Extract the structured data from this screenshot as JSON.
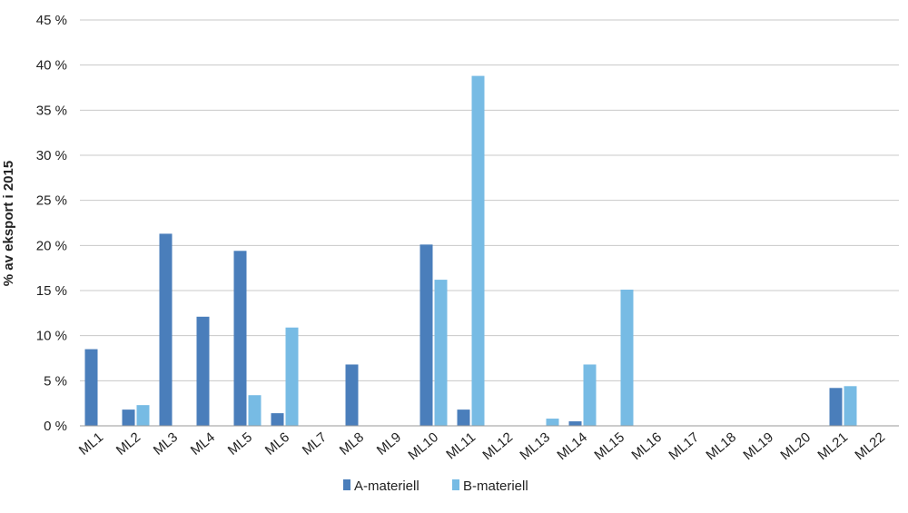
{
  "chart_data": {
    "type": "bar",
    "title": "",
    "xlabel": "",
    "ylabel": "% av eksport  i 2015",
    "ylim": [
      0,
      45
    ],
    "yticks": [
      0,
      5,
      10,
      15,
      20,
      25,
      30,
      35,
      40,
      45
    ],
    "ytick_suffix": " %",
    "grid": true,
    "legend_position": "bottom-center",
    "categories": [
      "ML1",
      "ML2",
      "ML3",
      "ML4",
      "ML5",
      "ML6",
      "ML7",
      "ML8",
      "ML9",
      "ML10",
      "ML11",
      "ML12",
      "ML13",
      "ML14",
      "ML15",
      "ML16",
      "ML17",
      "ML18",
      "ML19",
      "ML20",
      "ML21",
      "ML22"
    ],
    "series": [
      {
        "name": "A-materiell",
        "color": "#4a7ebb",
        "values": [
          8.5,
          1.8,
          21.3,
          12.1,
          19.4,
          1.4,
          0,
          6.8,
          0,
          20.1,
          1.8,
          0,
          0,
          0.5,
          0,
          0,
          0,
          0,
          0,
          0,
          4.2,
          0
        ]
      },
      {
        "name": "B-materiell",
        "color": "#77bbe4",
        "values": [
          0,
          2.3,
          0,
          0,
          3.4,
          10.9,
          0,
          0,
          0,
          16.2,
          38.8,
          0,
          0.8,
          6.8,
          15.1,
          0,
          0,
          0,
          0,
          0,
          4.4,
          0
        ]
      }
    ]
  }
}
